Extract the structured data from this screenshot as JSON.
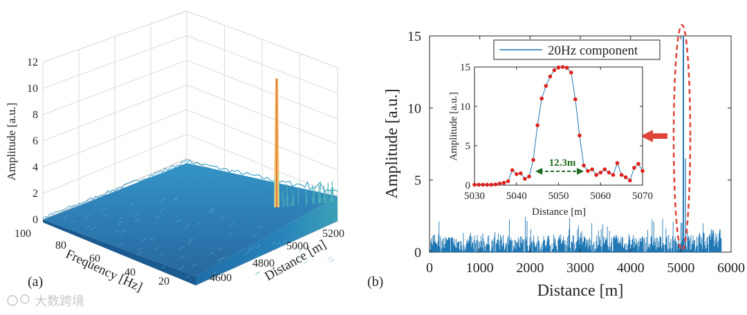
{
  "chart_data": [
    {
      "type": "surface3d",
      "panel_label": "(a)",
      "xlabel": "Frequency [Hz]",
      "ylabel": "Distance [m]",
      "zlabel": "Amplitude [a.u.]",
      "x_ticks": [
        "100",
        "80",
        "60",
        "40",
        "20"
      ],
      "y_ticks": [
        "4600",
        "4800",
        "5000",
        "5200"
      ],
      "z_ticks": [
        "0",
        "2",
        "4",
        "6",
        "8",
        "10",
        "12"
      ],
      "xlim": [
        0,
        100
      ],
      "ylim": [
        4500,
        5300
      ],
      "zlim": [
        0,
        12
      ],
      "peak": {
        "frequency": 20,
        "distance": 5050,
        "amplitude": 10.8
      }
    },
    {
      "type": "line",
      "panel_label": "(b)",
      "xlabel": "Distance [m]",
      "ylabel": "Amplitude [a.u.]",
      "x_ticks": [
        "0",
        "1000",
        "2000",
        "3000",
        "4000",
        "5000",
        "6000"
      ],
      "y_ticks": [
        "0",
        "5",
        "10",
        "15"
      ],
      "xlim": [
        0,
        6000
      ],
      "ylim": [
        0,
        15
      ],
      "legend": "20Hz component",
      "series_color": "#1f77b4",
      "highlight_color": "#e0453a",
      "peak": {
        "distance": 5050,
        "amplitude": 15
      },
      "inset": {
        "type": "line",
        "xlabel": "Distance [m]",
        "ylabel": "Amplitude [a.u.]",
        "x_ticks": [
          "5030",
          "5040",
          "5050",
          "5060",
          "5070"
        ],
        "y_ticks": [
          "0",
          "5",
          "10",
          "15"
        ],
        "xlim": [
          5030,
          5070
        ],
        "ylim": [
          0,
          15
        ],
        "annotation": "12.3m",
        "annotation_color": "#1e6b1e",
        "marker_color": "#e0211b",
        "x": [
          5030,
          5031,
          5032,
          5033,
          5034,
          5035,
          5036,
          5037,
          5038,
          5039,
          5040,
          5041,
          5042,
          5043,
          5044,
          5045,
          5046,
          5047,
          5048,
          5049,
          5050,
          5051,
          5052,
          5053,
          5054,
          5055,
          5056,
          5057,
          5058,
          5059,
          5060,
          5061,
          5062,
          5063,
          5064,
          5065,
          5066,
          5067,
          5068,
          5069,
          5070
        ],
        "y": [
          0.05,
          0.05,
          0.05,
          0.05,
          0.05,
          0.1,
          0.2,
          0.3,
          0.5,
          1.9,
          1.4,
          1.5,
          0.8,
          1.1,
          3.2,
          7.6,
          11.0,
          12.6,
          13.8,
          14.6,
          14.95,
          15.0,
          14.9,
          14.3,
          10.9,
          6.3,
          2.5,
          1.8,
          2.0,
          1.3,
          1.6,
          2.0,
          1.6,
          1.3,
          2.8,
          1.3,
          1.0,
          0.6,
          2.2,
          2.7,
          1.8
        ]
      }
    }
  ],
  "watermark": "大数跨境"
}
